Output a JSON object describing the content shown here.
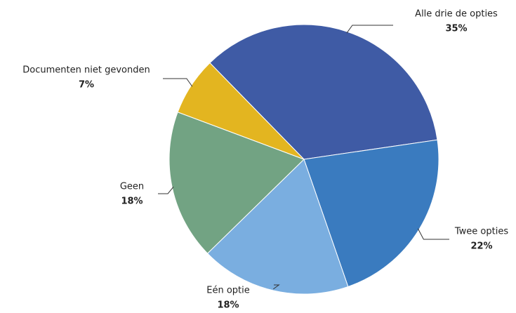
{
  "chart_data": {
    "type": "pie",
    "categories": [
      "Alle drie de opties",
      "Twee opties",
      "Eén optie",
      "Geen",
      "Documenten niet gevonden"
    ],
    "values": [
      35,
      22,
      18,
      18,
      7
    ],
    "value_labels": [
      "35%",
      "22%",
      "18%",
      "18%",
      "7%"
    ],
    "colors": [
      "#3f5ba5",
      "#3a7bbf",
      "#7aaee0",
      "#72a383",
      "#e3b520"
    ]
  }
}
